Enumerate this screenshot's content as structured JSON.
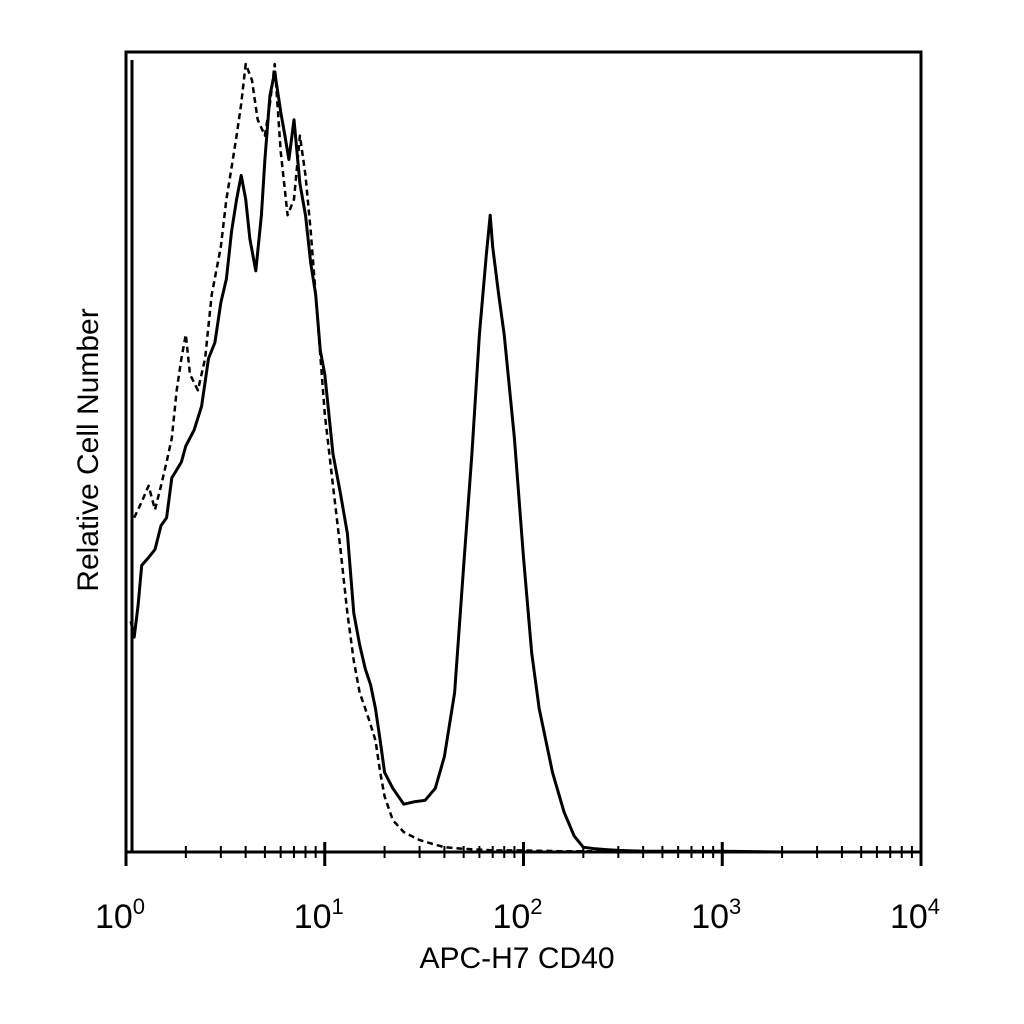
{
  "chart_data": {
    "type": "line",
    "xlabel": "APC-H7 CD40",
    "ylabel": "Relative Cell Number",
    "x_scale": "log",
    "xlim": [
      1,
      10000
    ],
    "ylim": [
      0,
      100
    ],
    "grid": false,
    "legend": "none",
    "x_ticks": [
      {
        "base": "10",
        "exp": "0",
        "value": 1
      },
      {
        "base": "10",
        "exp": "1",
        "value": 10
      },
      {
        "base": "10",
        "exp": "2",
        "value": 100
      },
      {
        "base": "10",
        "exp": "3",
        "value": 1000
      },
      {
        "base": "10",
        "exp": "4",
        "value": 10000
      }
    ],
    "series": [
      {
        "style": "solid",
        "x": [
          1.06,
          1.1,
          1.15,
          1.2,
          1.3,
          1.4,
          1.5,
          1.6,
          1.7,
          1.8,
          1.9,
          2.0,
          2.2,
          2.4,
          2.6,
          2.8,
          3.0,
          3.2,
          3.4,
          3.6,
          3.8,
          4.0,
          4.2,
          4.5,
          4.8,
          5.0,
          5.3,
          5.6,
          6.0,
          6.3,
          6.6,
          7.0,
          7.5,
          8.0,
          8.5,
          9.0,
          9.5,
          10,
          11,
          12,
          13,
          14,
          15,
          16,
          17,
          18,
          19,
          20,
          22,
          25,
          28,
          32,
          36,
          40,
          45,
          50,
          55,
          60,
          65,
          68,
          70,
          75,
          80,
          90,
          100,
          110,
          120,
          140,
          160,
          180,
          200,
          230,
          260,
          300,
          400,
          500,
          700,
          1000,
          2000,
          5000,
          9500
        ],
        "y": [
          29,
          27,
          31,
          36,
          37,
          38,
          41,
          42,
          47,
          48,
          49,
          51,
          53,
          56,
          62,
          64,
          69,
          72,
          78,
          82,
          85,
          82,
          77,
          73,
          80,
          87,
          95,
          98,
          93,
          90,
          87,
          92,
          84,
          80,
          74,
          70,
          63,
          60,
          50,
          45,
          40,
          30,
          26,
          23,
          21,
          18,
          14,
          10,
          8,
          6,
          6.3,
          6.5,
          8,
          12,
          20,
          36,
          50,
          65,
          75,
          80,
          76,
          70,
          65,
          52,
          37,
          25,
          18,
          10,
          5,
          2,
          0.6,
          0.4,
          0.3,
          0.2,
          0.1,
          0.1,
          0.1,
          0.1,
          0,
          0,
          0
        ]
      },
      {
        "style": "dashed",
        "x": [
          1.1,
          1.2,
          1.3,
          1.4,
          1.5,
          1.6,
          1.7,
          1.8,
          1.9,
          2.0,
          2.1,
          2.3,
          2.5,
          2.7,
          3.0,
          3.2,
          3.4,
          3.6,
          3.8,
          4.0,
          4.3,
          4.6,
          5.0,
          5.3,
          5.6,
          6.0,
          6.5,
          7.0,
          7.5,
          8.0,
          8.5,
          9.0,
          10,
          11,
          12,
          13,
          14,
          15,
          16,
          17,
          18,
          19,
          20,
          22,
          25,
          30,
          35,
          40,
          50,
          60,
          70,
          100,
          150,
          300,
          1000,
          9500
        ],
        "y": [
          42,
          44,
          46,
          43,
          46,
          49,
          52,
          58,
          62,
          65,
          60,
          58,
          62,
          70,
          76,
          82,
          86,
          90,
          94,
          99,
          97,
          92,
          90,
          94,
          99,
          88,
          80,
          82,
          90,
          85,
          78,
          70,
          55,
          46,
          38,
          30,
          24,
          20,
          18,
          16,
          14,
          10,
          7,
          4,
          2.5,
          1.5,
          1,
          0.6,
          0.4,
          0.3,
          0.2,
          0.2,
          0.1,
          0.1,
          0,
          0
        ]
      }
    ]
  }
}
